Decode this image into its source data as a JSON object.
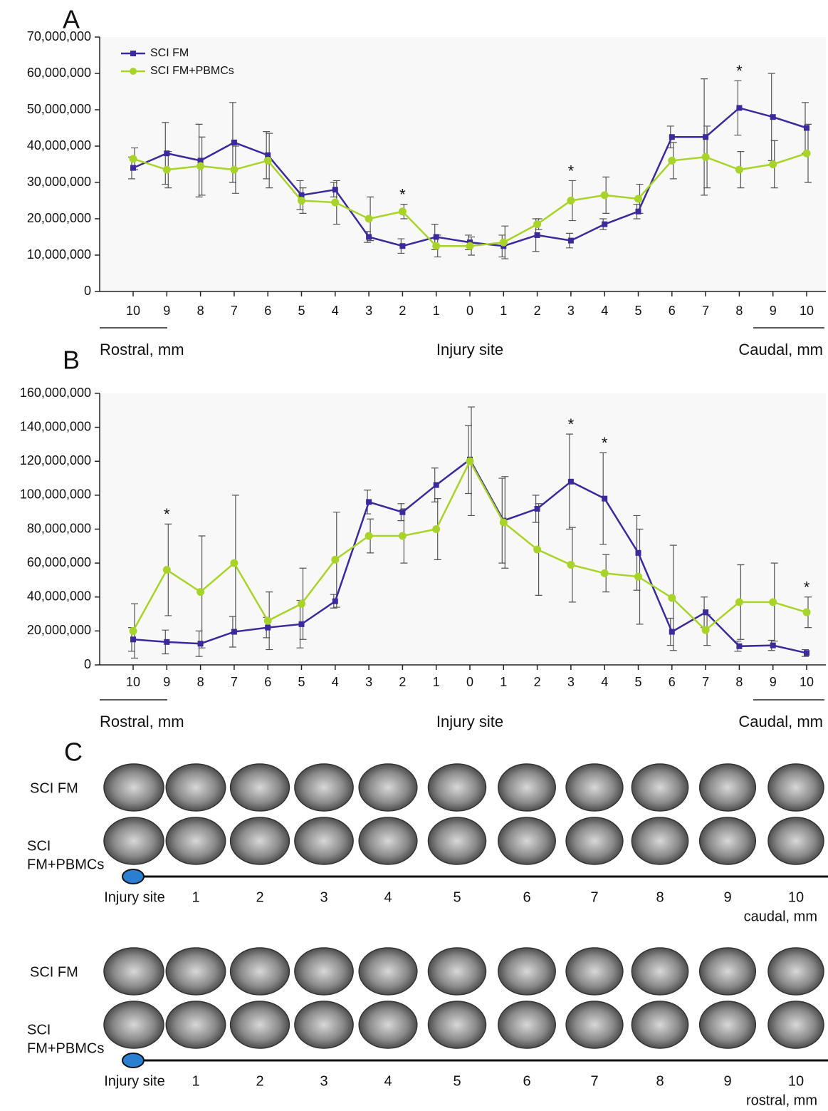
{
  "chart_data": [
    {
      "type": "line",
      "panel_label": "A",
      "categories": [
        "10",
        "9",
        "8",
        "7",
        "6",
        "5",
        "4",
        "3",
        "2",
        "1",
        "0",
        "1",
        "2",
        "3",
        "4",
        "5",
        "6",
        "7",
        "8",
        "9",
        "10"
      ],
      "series": [
        {
          "name": "SCI FM",
          "color": "#3a2a9c",
          "marker": "square",
          "values": [
            34000000,
            38000000,
            36000000,
            41000000,
            37500000,
            26500000,
            28000000,
            15000000,
            12500000,
            15000000,
            13500000,
            12500000,
            15500000,
            14000000,
            18500000,
            22000000,
            42500000,
            42500000,
            50500000,
            48000000,
            45000000
          ],
          "errors": [
            3000000,
            8500000,
            10000000,
            11000000,
            6500000,
            4000000,
            2000000,
            1500000,
            2000000,
            3500000,
            2000000,
            3000000,
            4500000,
            2000000,
            1500000,
            2000000,
            3000000,
            16000000,
            7500000,
            12000000,
            7000000
          ]
        },
        {
          "name": "SCI FM+PBMCs",
          "color": "#a8d42a",
          "marker": "circle",
          "values": [
            36500000,
            33500000,
            34500000,
            33500000,
            36000000,
            25000000,
            24500000,
            20000000,
            22000000,
            12500000,
            12500000,
            13500000,
            18500000,
            25000000,
            26500000,
            25500000,
            36000000,
            37000000,
            33500000,
            35000000,
            38000000
          ],
          "errors": [
            3000000,
            5000000,
            8000000,
            6500000,
            7500000,
            3500000,
            6000000,
            6000000,
            2000000,
            3000000,
            2500000,
            4500000,
            1500000,
            5500000,
            5000000,
            4000000,
            5000000,
            8500000,
            5000000,
            6500000,
            8000000
          ]
        }
      ],
      "significance": [
        null,
        null,
        null,
        null,
        null,
        null,
        null,
        null,
        "*",
        null,
        null,
        null,
        null,
        "*",
        null,
        null,
        null,
        null,
        "*",
        null,
        null
      ],
      "ylim": [
        0,
        70000000
      ],
      "yticks": [
        0,
        {
          "value": 10000000,
          "label": "10,000,000"
        },
        {
          "value": 20000000,
          "label": "20,000,000"
        },
        {
          "value": 30000000,
          "label": "30,000,000"
        },
        {
          "value": 40000000,
          "label": "40,000,000"
        },
        {
          "value": 50000000,
          "label": "50,000,000"
        },
        {
          "value": 60000000,
          "label": "60,000,000"
        },
        {
          "value": 70000000,
          "label": "70,000,000"
        }
      ],
      "x_regions": {
        "left": "Rostral, mm",
        "center": "Injury site",
        "right": "Caudal, mm"
      },
      "legend": "upper left"
    },
    {
      "type": "line",
      "panel_label": "B",
      "categories": [
        "10",
        "9",
        "8",
        "7",
        "6",
        "5",
        "4",
        "3",
        "2",
        "1",
        "0",
        "1",
        "2",
        "3",
        "4",
        "5",
        "6",
        "7",
        "8",
        "9",
        "10"
      ],
      "series": [
        {
          "name": "SCI FM",
          "color": "#3a2a9c",
          "marker": "square",
          "values": [
            15000000,
            13500000,
            12500000,
            19500000,
            22000000,
            24000000,
            37500000,
            96000000,
            90000000,
            106000000,
            121000000,
            85000000,
            92000000,
            108000000,
            98000000,
            66000000,
            19500000,
            31000000,
            11000000,
            11500000,
            7000000
          ],
          "errors": [
            7000000,
            7000000,
            7500000,
            9000000,
            6000000,
            14000000,
            4000000,
            7000000,
            5000000,
            10000000,
            20000000,
            25000000,
            8000000,
            28000000,
            27000000,
            22000000,
            8000000,
            9000000,
            3000000,
            3000000,
            2000000
          ]
        },
        {
          "name": "SCI FM+PBMCs",
          "color": "#a8d42a",
          "marker": "circle",
          "values": [
            20000000,
            56000000,
            43000000,
            60000000,
            26000000,
            36000000,
            62000000,
            76000000,
            76000000,
            80000000,
            120000000,
            84000000,
            68000000,
            59000000,
            54000000,
            52000000,
            39500000,
            20500000,
            37000000,
            37000000,
            31000000
          ],
          "errors": [
            16000000,
            27000000,
            33000000,
            40000000,
            17000000,
            21000000,
            28000000,
            10000000,
            16000000,
            18000000,
            32000000,
            27000000,
            27000000,
            22000000,
            11000000,
            28000000,
            31000000,
            9000000,
            22000000,
            23000000,
            9000000
          ]
        }
      ],
      "significance": [
        null,
        "*",
        null,
        null,
        null,
        null,
        null,
        null,
        null,
        null,
        null,
        null,
        null,
        "*",
        "*",
        null,
        null,
        null,
        null,
        null,
        "*"
      ],
      "ylim": [
        0,
        160000000
      ],
      "yticks": [
        0,
        {
          "value": 20000000,
          "label": "20,000,000"
        },
        {
          "value": 40000000,
          "label": "40,000,000"
        },
        {
          "value": 60000000,
          "label": "60,000,000"
        },
        {
          "value": 80000000,
          "label": "80,000,000"
        },
        {
          "value": 100000000,
          "label": "100,000,000"
        },
        {
          "value": 120000000,
          "label": "120,000,000"
        },
        {
          "value": 140000000,
          "label": "140,000,000"
        },
        {
          "value": 160000000,
          "label": "160,000,000"
        }
      ],
      "x_regions": {
        "left": "Rostral, mm",
        "center": "Injury site",
        "right": "Caudal, mm"
      }
    }
  ],
  "panel_c": {
    "label": "C",
    "blocks": [
      {
        "rows": [
          [
            "SCI FM"
          ],
          [
            "SCI",
            "FM+PBMCs"
          ]
        ],
        "axis_labels": [
          "Injury site",
          "1",
          "2",
          "3",
          "4",
          "5",
          "6",
          "7",
          "8",
          "9",
          "10"
        ],
        "direction": "caudal, mm"
      },
      {
        "rows": [
          [
            "SCI FM"
          ],
          [
            "SCI",
            "FM+PBMCs"
          ]
        ],
        "axis_labels": [
          "Injury site",
          "1",
          "2",
          "3",
          "4",
          "5",
          "6",
          "7",
          "8",
          "9",
          "10"
        ],
        "direction": "rostral, mm"
      }
    ]
  }
}
